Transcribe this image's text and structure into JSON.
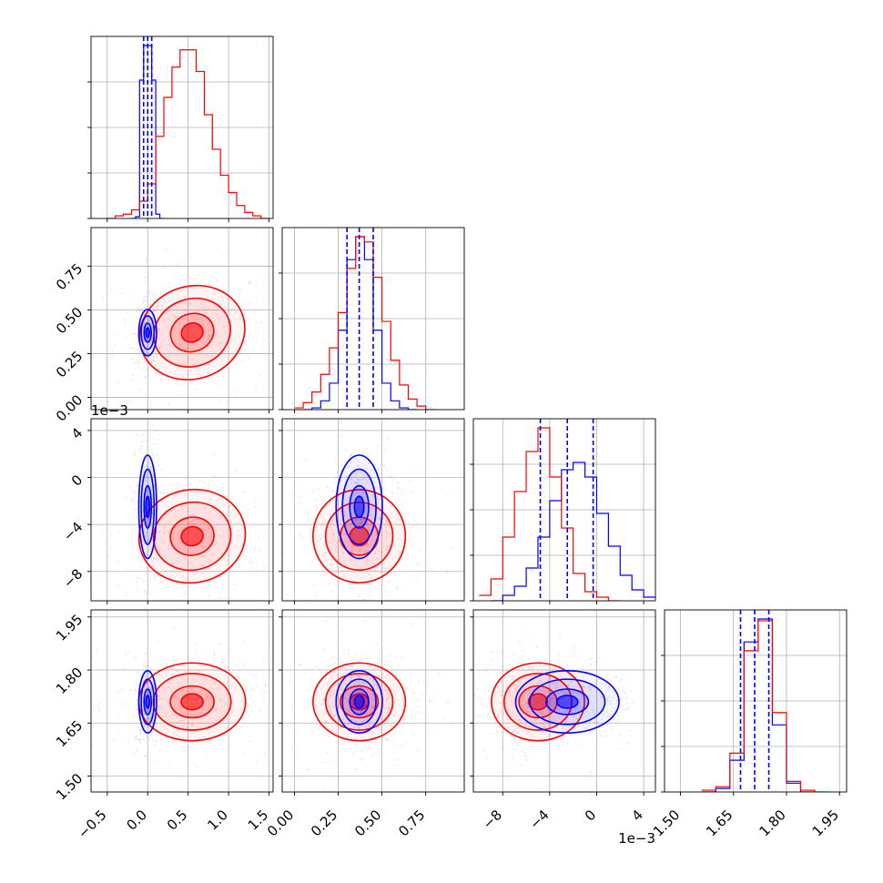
{
  "chart_data": {
    "type": "corner",
    "grid": true,
    "colors": {
      "blue": "#0000ff",
      "red": "#ff0000",
      "grid": "#b0b0b0"
    },
    "series": [
      {
        "color": "blue",
        "histograms": [
          {
            "param": 0,
            "x": [
              -0.2,
              -0.15,
              -0.1,
              -0.05,
              0.0,
              0.05,
              0.1,
              0.15
            ],
            "y": [
              0.0,
              0.02,
              1.6,
              2.0,
              2.0,
              1.6,
              0.05,
              0.0
            ]
          },
          {
            "param": 1,
            "x": [
              0.05,
              0.1,
              0.15,
              0.2,
              0.25,
              0.3,
              0.35,
              0.4,
              0.45,
              0.5,
              0.55,
              0.6,
              0.65
            ],
            "y": [
              0.0,
              0.01,
              0.05,
              0.15,
              0.45,
              0.85,
              0.98,
              0.85,
              0.45,
              0.15,
              0.05,
              0.01,
              0.0
            ]
          },
          {
            "param": 2,
            "x": [
              -9,
              -8,
              -7,
              -6,
              -5,
              -4,
              -3,
              -2,
              -1,
              0,
              1,
              2,
              3,
              4
            ],
            "y": [
              0.0,
              0.03,
              0.08,
              0.18,
              0.35,
              0.55,
              0.72,
              0.76,
              0.68,
              0.48,
              0.3,
              0.14,
              0.06,
              0.02
            ]
          },
          {
            "param": 3,
            "x": [
              1.56,
              1.6,
              1.64,
              1.68,
              1.72,
              1.76,
              1.8,
              1.84
            ],
            "y": [
              0.0,
              0.02,
              0.18,
              0.85,
              0.98,
              0.38,
              0.05,
              0.0
            ]
          }
        ],
        "quantiles": [
          [
            -0.05,
            0.0,
            0.05
          ],
          [
            0.3,
            0.37,
            0.45
          ],
          [
            -4.8,
            -2.5,
            -0.3
          ],
          [
            1.67,
            1.71,
            1.75
          ]
        ],
        "means": [
          0.0,
          0.37,
          -2.5,
          1.71
        ]
      },
      {
        "color": "red",
        "histograms": [
          {
            "param": 0,
            "x": [
              -0.5,
              -0.4,
              -0.3,
              -0.2,
              -0.1,
              0.0,
              0.1,
              0.2,
              0.3,
              0.4,
              0.5,
              0.6,
              0.7,
              0.8,
              0.9,
              1.0,
              1.1,
              1.2,
              1.3,
              1.4
            ],
            "y": [
              0.0,
              0.03,
              0.05,
              0.1,
              0.2,
              0.4,
              0.95,
              1.4,
              1.75,
              1.95,
              1.95,
              1.7,
              1.2,
              0.8,
              0.5,
              0.3,
              0.15,
              0.07,
              0.03,
              0.0
            ]
          },
          {
            "param": 1,
            "x": [
              0.0,
              0.05,
              0.1,
              0.15,
              0.2,
              0.25,
              0.3,
              0.35,
              0.4,
              0.45,
              0.5,
              0.55,
              0.6,
              0.65,
              0.7,
              0.75
            ],
            "y": [
              0.01,
              0.04,
              0.1,
              0.2,
              0.35,
              0.55,
              0.8,
              0.98,
              0.95,
              0.75,
              0.5,
              0.28,
              0.14,
              0.06,
              0.02,
              0.0
            ]
          },
          {
            "param": 2,
            "x": [
              -10,
              -9,
              -8,
              -7,
              -6,
              -5,
              -4,
              -3,
              -2,
              -1,
              0,
              1
            ],
            "y": [
              0.03,
              0.12,
              0.35,
              0.6,
              0.82,
              0.95,
              0.68,
              0.4,
              0.15,
              0.05,
              0.02,
              0.0
            ]
          },
          {
            "param": 3,
            "x": [
              1.56,
              1.6,
              1.64,
              1.68,
              1.72,
              1.76,
              1.8,
              1.84,
              1.88
            ],
            "y": [
              0.01,
              0.03,
              0.22,
              0.8,
              0.97,
              0.45,
              0.06,
              0.01,
              0.0
            ]
          }
        ],
        "means": [
          0.55,
          0.37,
          -5.0,
          1.71
        ],
        "sigmas": [
          0.3,
          0.12,
          1.8,
          0.05
        ]
      }
    ],
    "params": [
      {
        "range": [
          -0.7,
          1.55
        ],
        "ticks": [
          -0.5,
          0.0,
          0.5,
          1.0,
          1.5
        ],
        "ticklabels": [
          "−0.5",
          "0.0",
          "0.5",
          "1.0",
          "1.5"
        ]
      },
      {
        "range": [
          -0.07,
          0.97
        ],
        "ticks": [
          0.0,
          0.25,
          0.5,
          0.75
        ],
        "ticklabels": [
          "0.00",
          "0.25",
          "0.50",
          "0.75"
        ]
      },
      {
        "range": [
          -10.5,
          5.0
        ],
        "ticks": [
          -8,
          -4,
          0,
          4
        ],
        "ticklabels": [
          "−8",
          "−4",
          "0",
          "4"
        ],
        "offset": "1e−3"
      },
      {
        "range": [
          1.455,
          1.97
        ],
        "ticks": [
          1.5,
          1.65,
          1.8,
          1.95
        ],
        "ticklabels": [
          "1.50",
          "1.65",
          "1.80",
          "1.95"
        ]
      }
    ]
  }
}
